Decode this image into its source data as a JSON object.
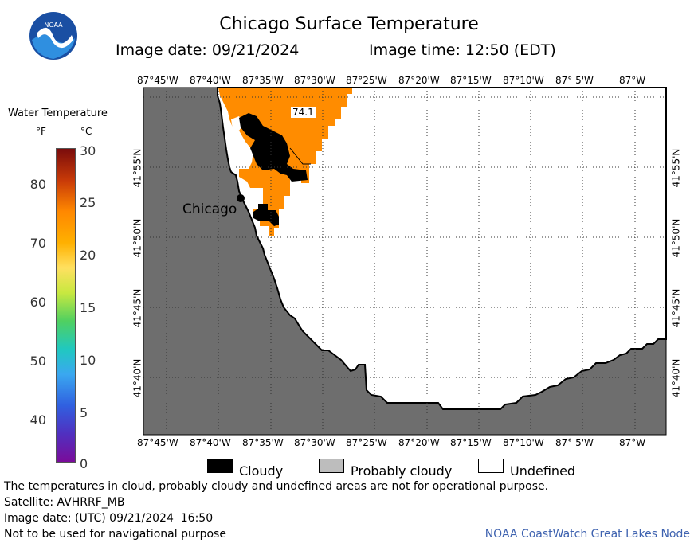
{
  "header": {
    "title": "Chicago Surface Temperature",
    "image_date_label": "Image date: 09/21/2024",
    "image_time_label": "Image time: 12:50 (EDT)"
  },
  "logo": {
    "text": "NOAA"
  },
  "legend": {
    "title": "Water Temperature",
    "unit_f": "°F",
    "unit_c": "°C",
    "ticks_f": [
      "80",
      "70",
      "60",
      "50",
      "40"
    ],
    "ticks_c": [
      "30",
      "25",
      "20",
      "15",
      "10",
      "5",
      "0"
    ]
  },
  "map": {
    "lon_labels_top": [
      "87°45'W",
      "87°40'W",
      "87°35'W",
      "87°30'W",
      "87°25'W",
      "87°20'W",
      "87°15'W",
      "87°10'W",
      "87° 5'W",
      "87°W"
    ],
    "lon_labels_bottom": [
      "87°45'W",
      "87°40'W",
      "87°35'W",
      "87°30'W",
      "87°25'W",
      "87°20'W",
      "87°15'W",
      "87°10'W",
      "87° 5'W",
      "87°W"
    ],
    "lat_labels": [
      "41°55'N",
      "41°50'N",
      "41°45'N",
      "41°40'N"
    ],
    "city_label": "Chicago",
    "temperature_label": "74.1",
    "colors": {
      "land": "#6e6e6e",
      "warm_water": "#ff8c00",
      "cloudy": "#000000",
      "undefined": "#ffffff"
    }
  },
  "key": {
    "cloudy": "Cloudy",
    "probably_cloudy": "Probably cloudy",
    "undefined": "Undefined"
  },
  "footer": {
    "line1": "The temperatures in cloud, probably cloudy and undefined areas are not for operational purpose.",
    "line2": "Satellite: AVHRRF_MB",
    "line3": "Image date: (UTC) 09/21/2024  16:50",
    "line4": "Not to be used for navigational purpose",
    "credit": "NOAA CoastWatch Great Lakes Node"
  }
}
